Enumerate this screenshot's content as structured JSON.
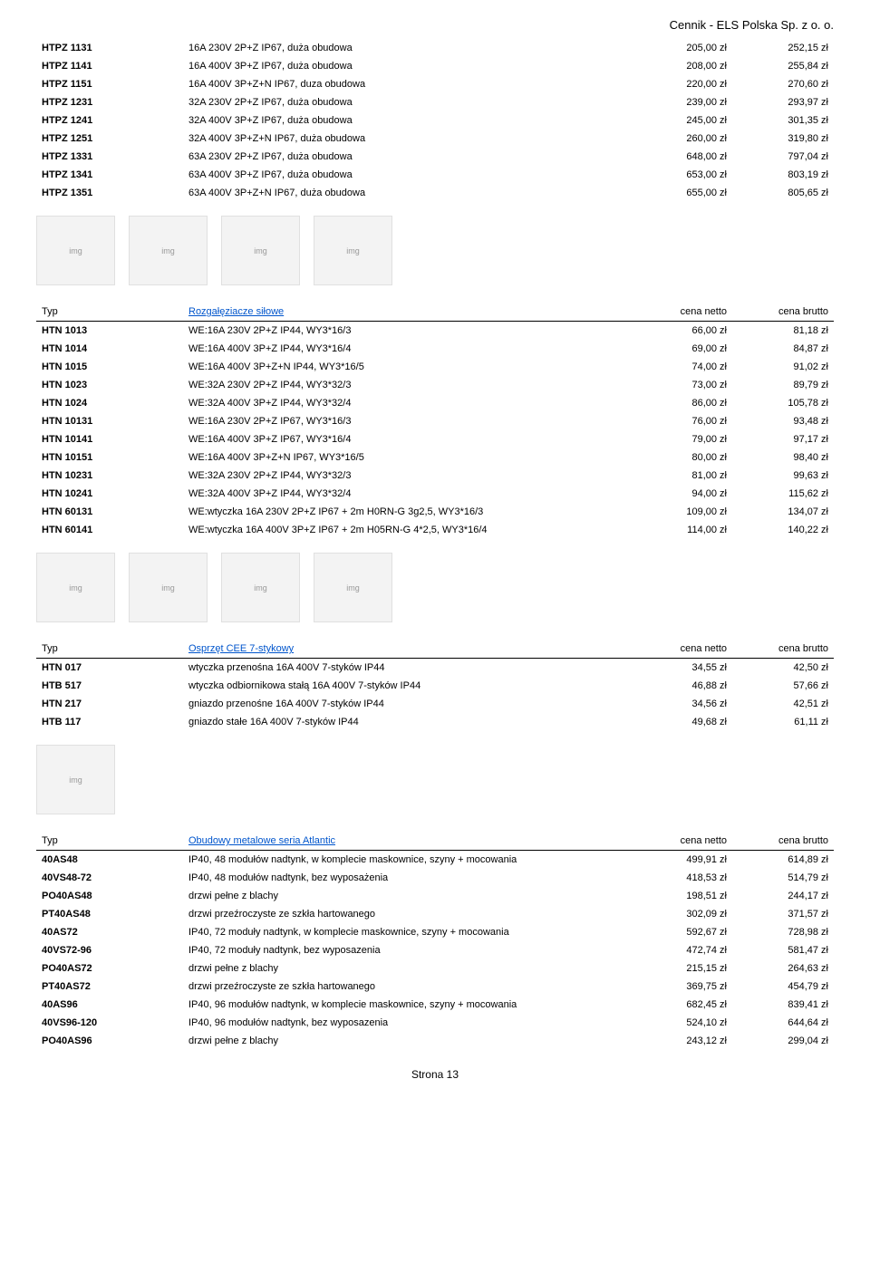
{
  "header": "Cennik - ELS Polska Sp. z o. o.",
  "footer": "Strona 13",
  "col_labels": {
    "type": "Typ",
    "net": "cena netto",
    "gross": "cena brutto"
  },
  "table1": {
    "rows": [
      {
        "code": "HTPZ 1131",
        "desc": "16A 230V 2P+Z IP67, duża obudowa",
        "net": "205,00 zł",
        "gross": "252,15 zł"
      },
      {
        "code": "HTPZ 1141",
        "desc": "16A 400V 3P+Z IP67, duża obudowa",
        "net": "208,00 zł",
        "gross": "255,84 zł"
      },
      {
        "code": "HTPZ 1151",
        "desc": "16A 400V 3P+Z+N IP67, duza obudowa",
        "net": "220,00 zł",
        "gross": "270,60 zł"
      },
      {
        "code": "HTPZ 1231",
        "desc": "32A 230V 2P+Z IP67, duża obudowa",
        "net": "239,00 zł",
        "gross": "293,97 zł"
      },
      {
        "code": "HTPZ 1241",
        "desc": "32A 400V 3P+Z IP67, duża obudowa",
        "net": "245,00 zł",
        "gross": "301,35 zł"
      },
      {
        "code": "HTPZ 1251",
        "desc": "32A 400V 3P+Z+N IP67, duża obudowa",
        "net": "260,00 zł",
        "gross": "319,80 zł"
      },
      {
        "code": "HTPZ 1331",
        "desc": "63A 230V 2P+Z IP67, duża obudowa",
        "net": "648,00 zł",
        "gross": "797,04 zł"
      },
      {
        "code": "HTPZ 1341",
        "desc": "63A 400V 3P+Z IP67, duża obudowa",
        "net": "653,00 zł",
        "gross": "803,19 zł"
      },
      {
        "code": "HTPZ 1351",
        "desc": "63A 400V 3P+Z+N IP67, duża obudowa",
        "net": "655,00 zł",
        "gross": "805,65 zł"
      }
    ]
  },
  "table2": {
    "title": "Rozgałęziacze siłowe",
    "rows": [
      {
        "code": "HTN 1013",
        "desc": "WE:16A 230V 2P+Z IP44, WY3*16/3",
        "net": "66,00 zł",
        "gross": "81,18 zł"
      },
      {
        "code": "HTN 1014",
        "desc": "WE:16A 400V 3P+Z IP44, WY3*16/4",
        "net": "69,00 zł",
        "gross": "84,87 zł"
      },
      {
        "code": "HTN 1015",
        "desc": "WE:16A 400V 3P+Z+N IP44, WY3*16/5",
        "net": "74,00 zł",
        "gross": "91,02 zł"
      },
      {
        "code": "HTN 1023",
        "desc": "WE:32A 230V 2P+Z IP44, WY3*32/3",
        "net": "73,00 zł",
        "gross": "89,79 zł"
      },
      {
        "code": "HTN 1024",
        "desc": "WE:32A 400V 3P+Z IP44, WY3*32/4",
        "net": "86,00 zł",
        "gross": "105,78 zł"
      },
      {
        "code": "HTN 10131",
        "desc": "WE:16A 230V 2P+Z IP67, WY3*16/3",
        "net": "76,00 zł",
        "gross": "93,48 zł"
      },
      {
        "code": "HTN 10141",
        "desc": "WE:16A 400V 3P+Z IP67, WY3*16/4",
        "net": "79,00 zł",
        "gross": "97,17 zł"
      },
      {
        "code": "HTN 10151",
        "desc": "WE:16A 400V 3P+Z+N IP67, WY3*16/5",
        "net": "80,00 zł",
        "gross": "98,40 zł"
      },
      {
        "code": "HTN 10231",
        "desc": "WE:32A 230V 2P+Z IP44, WY3*32/3",
        "net": "81,00 zł",
        "gross": "99,63 zł"
      },
      {
        "code": "HTN 10241",
        "desc": "WE:32A 400V 3P+Z IP44, WY3*32/4",
        "net": "94,00 zł",
        "gross": "115,62 zł"
      },
      {
        "code": "HTN 60131",
        "desc": "WE:wtyczka 16A 230V 2P+Z IP67 + 2m H0RN-G 3g2,5, WY3*16/3",
        "net": "109,00 zł",
        "gross": "134,07 zł"
      },
      {
        "code": "HTN 60141",
        "desc": "WE:wtyczka 16A 400V 3P+Z IP67 + 2m H05RN-G 4*2,5, WY3*16/4",
        "net": "114,00 zł",
        "gross": "140,22 zł"
      }
    ]
  },
  "table3": {
    "title": "Osprzęt CEE 7-stykowy",
    "rows": [
      {
        "code": "HTN 017",
        "desc": "wtyczka przenośna 16A 400V 7-styków IP44",
        "net": "34,55 zł",
        "gross": "42,50 zł"
      },
      {
        "code": "HTB 517",
        "desc": "wtyczka odbiornikowa stałą 16A 400V 7-styków IP44",
        "net": "46,88 zł",
        "gross": "57,66 zł"
      },
      {
        "code": "HTN 217",
        "desc": "gniazdo przenośne 16A 400V 7-styków IP44",
        "net": "34,56 zł",
        "gross": "42,51 zł"
      },
      {
        "code": "HTB 117",
        "desc": "gniazdo stałe 16A 400V 7-styków IP44",
        "net": "49,68 zł",
        "gross": "61,11 zł"
      }
    ]
  },
  "table4": {
    "title": "Obudowy metalowe seria Atlantic",
    "rows": [
      {
        "code": "40AS48",
        "desc": "IP40, 48 modułów nadtynk, w komplecie maskownice, szyny + mocowania",
        "net": "499,91 zł",
        "gross": "614,89 zł"
      },
      {
        "code": "40VS48-72",
        "desc": "IP40, 48 modułów nadtynk, bez wyposażenia",
        "net": "418,53 zł",
        "gross": "514,79 zł"
      },
      {
        "code": "PO40AS48",
        "desc": "drzwi pełne z blachy",
        "net": "198,51 zł",
        "gross": "244,17 zł"
      },
      {
        "code": "PT40AS48",
        "desc": "drzwi przeźroczyste ze szkła hartowanego",
        "net": "302,09 zł",
        "gross": "371,57 zł"
      },
      {
        "code": "40AS72",
        "desc": "IP40, 72 moduły nadtynk, w komplecie maskownice, szyny + mocowania",
        "net": "592,67 zł",
        "gross": "728,98 zł"
      },
      {
        "code": "40VS72-96",
        "desc": "IP40, 72 moduły nadtynk, bez wyposazenia",
        "net": "472,74 zł",
        "gross": "581,47 zł"
      },
      {
        "code": "PO40AS72",
        "desc": "drzwi pełne z blachy",
        "net": "215,15 zł",
        "gross": "264,63 zł"
      },
      {
        "code": "PT40AS72",
        "desc": "drzwi przeźroczyste ze szkła hartowanego",
        "net": "369,75 zł",
        "gross": "454,79 zł"
      },
      {
        "code": "40AS96",
        "desc": "IP40, 96 modułów nadtynk, w komplecie maskownice, szyny + mocowania",
        "net": "682,45 zł",
        "gross": "839,41 zł"
      },
      {
        "code": "40VS96-120",
        "desc": "IP40, 96 modułów nadtynk, bez wyposazenia",
        "net": "524,10 zł",
        "gross": "644,64 zł"
      },
      {
        "code": "PO40AS96",
        "desc": "drzwi pełne z blachy",
        "net": "243,12 zł",
        "gross": "299,04 zł"
      }
    ]
  },
  "images": {
    "set1_count": 4,
    "set2_count": 4,
    "set3_count": 1
  }
}
